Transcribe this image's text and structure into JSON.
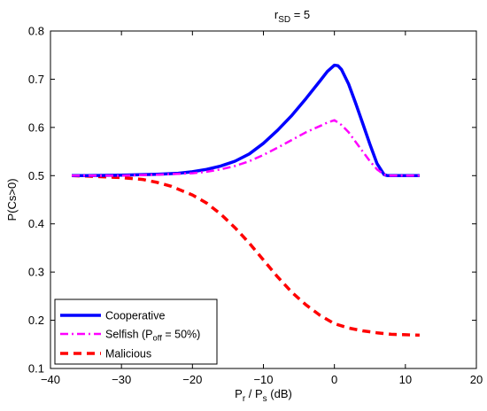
{
  "chart_data": {
    "type": "line",
    "title": {
      "main": "r",
      "sub": "SD",
      "rest": " = 5"
    },
    "xlabel": {
      "p1": "P",
      "s1": "r",
      "mid": " / P",
      "s2": "s",
      "rest": " (dB)"
    },
    "ylabel": "P(Cs>0)",
    "xlim": [
      -40,
      20
    ],
    "ylim": [
      0.1,
      0.8
    ],
    "xticks": [
      "−40",
      "−30",
      "−20",
      "−10",
      "0",
      "10",
      "20"
    ],
    "xtick_values": [
      -40,
      -30,
      -20,
      -10,
      0,
      10,
      20
    ],
    "yticks": [
      "0.1",
      "0.2",
      "0.3",
      "0.4",
      "0.5",
      "0.6",
      "0.7",
      "0.8"
    ],
    "ytick_values": [
      0.1,
      0.2,
      0.3,
      0.4,
      0.5,
      0.6,
      0.7,
      0.8
    ],
    "grid": false,
    "legend_position": "bottom-left",
    "series": [
      {
        "name": "Cooperative",
        "color": "#0000ff",
        "style": "solid",
        "x": [
          -37,
          -35,
          -30,
          -25,
          -22,
          -20,
          -18,
          -16,
          -14,
          -12,
          -10,
          -8,
          -6,
          -4,
          -2,
          -1,
          0,
          0.5,
          1,
          2,
          3,
          4,
          5,
          6,
          7,
          7.5,
          9,
          12
        ],
        "y": [
          0.5,
          0.5,
          0.501,
          0.503,
          0.505,
          0.508,
          0.513,
          0.52,
          0.53,
          0.545,
          0.567,
          0.594,
          0.625,
          0.66,
          0.697,
          0.716,
          0.729,
          0.728,
          0.72,
          0.69,
          0.65,
          0.608,
          0.565,
          0.525,
          0.502,
          0.5,
          0.5,
          0.5
        ]
      },
      {
        "name": "Selfish (P",
        "name_sub": "off",
        "name_rest": " = 50%)",
        "color": "#ff00ff",
        "style": "dashdot",
        "x": [
          -37,
          -35,
          -30,
          -25,
          -20,
          -18,
          -16,
          -14,
          -12,
          -10,
          -8,
          -6,
          -4,
          -2,
          -1,
          0,
          1,
          2,
          3,
          4,
          5,
          6,
          7,
          7.5,
          9,
          12
        ],
        "y": [
          0.5,
          0.5,
          0.5,
          0.502,
          0.505,
          0.508,
          0.513,
          0.52,
          0.53,
          0.543,
          0.558,
          0.574,
          0.59,
          0.603,
          0.61,
          0.615,
          0.605,
          0.59,
          0.57,
          0.55,
          0.53,
          0.513,
          0.502,
          0.5,
          0.5,
          0.5
        ]
      },
      {
        "name": "Malicious",
        "color": "#ff0000",
        "style": "dashed",
        "x": [
          -37,
          -35,
          -30,
          -27,
          -25,
          -23,
          -20,
          -18,
          -16,
          -14,
          -12,
          -10,
          -8,
          -6,
          -4,
          -2,
          0,
          2,
          4,
          6,
          8,
          10,
          12
        ],
        "y": [
          0.5,
          0.499,
          0.496,
          0.492,
          0.486,
          0.478,
          0.46,
          0.443,
          0.42,
          0.392,
          0.36,
          0.325,
          0.29,
          0.258,
          0.232,
          0.21,
          0.193,
          0.184,
          0.178,
          0.174,
          0.171,
          0.17,
          0.169
        ]
      }
    ]
  }
}
